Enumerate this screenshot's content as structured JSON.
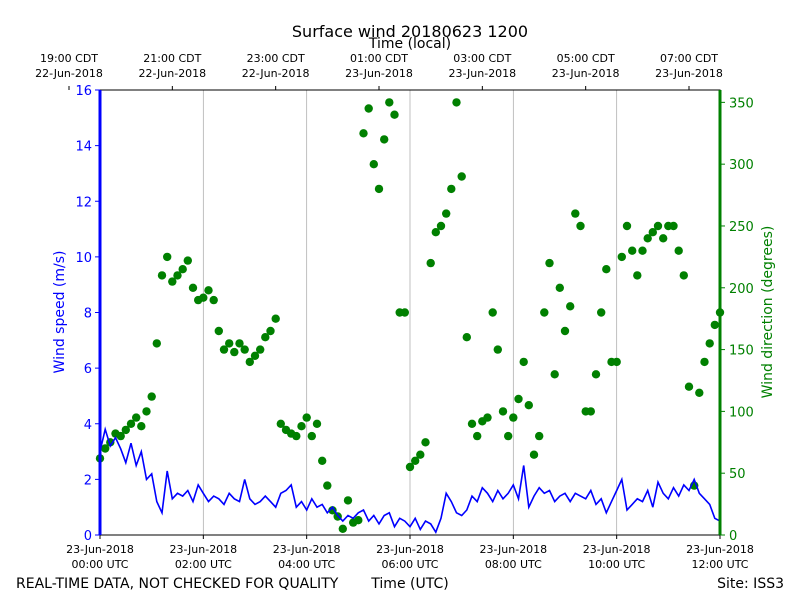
{
  "chart_data": {
    "type": "line+scatter",
    "title": "Surface wind 20180623 1200",
    "top_axis_label": "Time (local)",
    "bottom_axis_label": "Time (UTC)",
    "ylabel_left": "Wind speed (m/s)",
    "ylabel_right": "Wind direction (degrees)",
    "footer_left": "REAL-TIME DATA, NOT CHECKED FOR QUALITY",
    "footer_right": "Site: ISS3",
    "xlim_hours_utc": [
      0,
      12
    ],
    "ylim_left": [
      0,
      16
    ],
    "ylim_right": [
      0,
      360
    ],
    "left_ticks": [
      "0",
      "2",
      "4",
      "6",
      "8",
      "10",
      "12",
      "14",
      "16"
    ],
    "right_ticks": [
      "0",
      "50",
      "100",
      "150",
      "200",
      "250",
      "300",
      "350"
    ],
    "bottom_ticks": [
      {
        "hour": 0,
        "line1": "23-Jun-2018",
        "line2": "00:00 UTC"
      },
      {
        "hour": 2,
        "line1": "23-Jun-2018",
        "line2": "02:00 UTC"
      },
      {
        "hour": 4,
        "line1": "23-Jun-2018",
        "line2": "04:00 UTC"
      },
      {
        "hour": 6,
        "line1": "23-Jun-2018",
        "line2": "06:00 UTC"
      },
      {
        "hour": 8,
        "line1": "23-Jun-2018",
        "line2": "08:00 UTC"
      },
      {
        "hour": 10,
        "line1": "23-Jun-2018",
        "line2": "10:00 UTC"
      },
      {
        "hour": 12,
        "line1": "23-Jun-2018",
        "line2": "12:00 UTC"
      }
    ],
    "top_ticks": [
      {
        "hour": -0.6,
        "line1": "19:00 CDT",
        "line2": "22-Jun-2018"
      },
      {
        "hour": 1.4,
        "line1": "21:00 CDT",
        "line2": "22-Jun-2018"
      },
      {
        "hour": 3.4,
        "line1": "23:00 CDT",
        "line2": "22-Jun-2018"
      },
      {
        "hour": 5.4,
        "line1": "01:00 CDT",
        "line2": "23-Jun-2018"
      },
      {
        "hour": 7.4,
        "line1": "03:00 CDT",
        "line2": "23-Jun-2018"
      },
      {
        "hour": 9.4,
        "line1": "05:00 CDT",
        "line2": "23-Jun-2018"
      },
      {
        "hour": 11.4,
        "line1": "07:00 CDT",
        "line2": "23-Jun-2018"
      }
    ],
    "colors": {
      "speed": "#0000ff",
      "direction": "#008000",
      "grid": "#b0b0b0",
      "axis": "#000000"
    },
    "series": [
      {
        "name": "Wind speed (m/s)",
        "axis": "left",
        "style": "line",
        "x": [
          0.0,
          0.1,
          0.2,
          0.3,
          0.4,
          0.5,
          0.6,
          0.7,
          0.8,
          0.9,
          1.0,
          1.1,
          1.2,
          1.3,
          1.4,
          1.5,
          1.6,
          1.7,
          1.8,
          1.9,
          2.0,
          2.1,
          2.2,
          2.3,
          2.4,
          2.5,
          2.6,
          2.7,
          2.8,
          2.9,
          3.0,
          3.1,
          3.2,
          3.3,
          3.4,
          3.5,
          3.6,
          3.7,
          3.8,
          3.9,
          4.0,
          4.1,
          4.2,
          4.3,
          4.4,
          4.5,
          4.6,
          4.7,
          4.8,
          4.9,
          5.0,
          5.1,
          5.2,
          5.3,
          5.4,
          5.5,
          5.6,
          5.7,
          5.8,
          5.9,
          6.0,
          6.1,
          6.2,
          6.3,
          6.4,
          6.5,
          6.6,
          6.7,
          6.8,
          6.9,
          7.0,
          7.1,
          7.2,
          7.3,
          7.4,
          7.5,
          7.6,
          7.7,
          7.8,
          7.9,
          8.0,
          8.1,
          8.2,
          8.3,
          8.4,
          8.5,
          8.6,
          8.7,
          8.8,
          8.9,
          9.0,
          9.1,
          9.2,
          9.3,
          9.4,
          9.5,
          9.6,
          9.7,
          9.8,
          9.9,
          10.0,
          10.1,
          10.2,
          10.3,
          10.4,
          10.5,
          10.6,
          10.7,
          10.8,
          10.9,
          11.0,
          11.1,
          11.2,
          11.3,
          11.4,
          11.5,
          11.6,
          11.7,
          11.8,
          11.9,
          12.0
        ],
        "y": [
          3.0,
          3.8,
          3.2,
          3.5,
          3.1,
          2.6,
          3.3,
          2.5,
          3.0,
          2.0,
          2.2,
          1.2,
          0.8,
          2.3,
          1.3,
          1.5,
          1.4,
          1.6,
          1.2,
          1.8,
          1.5,
          1.2,
          1.4,
          1.3,
          1.1,
          1.5,
          1.3,
          1.2,
          2.0,
          1.3,
          1.1,
          1.2,
          1.4,
          1.2,
          1.0,
          1.5,
          1.6,
          1.8,
          1.0,
          1.2,
          0.9,
          1.3,
          1.0,
          1.1,
          0.8,
          1.0,
          0.7,
          0.5,
          0.7,
          0.6,
          0.8,
          0.9,
          0.5,
          0.7,
          0.4,
          0.7,
          0.8,
          0.3,
          0.6,
          0.5,
          0.3,
          0.6,
          0.2,
          0.5,
          0.4,
          0.1,
          0.6,
          1.5,
          1.2,
          0.8,
          0.7,
          0.9,
          1.4,
          1.2,
          1.7,
          1.5,
          1.2,
          1.6,
          1.3,
          1.5,
          1.8,
          1.3,
          2.5,
          1.0,
          1.4,
          1.7,
          1.5,
          1.6,
          1.2,
          1.4,
          1.5,
          1.2,
          1.5,
          1.4,
          1.3,
          1.6,
          1.1,
          1.3,
          0.8,
          1.2,
          1.6,
          2.0,
          0.9,
          1.1,
          1.3,
          1.2,
          1.6,
          1.0,
          1.9,
          1.5,
          1.3,
          1.7,
          1.4,
          1.8,
          1.6,
          2.0,
          1.5,
          1.3,
          1.1,
          0.6,
          0.5
        ]
      },
      {
        "name": "Wind direction (degrees)",
        "axis": "right",
        "style": "markers",
        "x": [
          0.0,
          0.1,
          0.2,
          0.3,
          0.4,
          0.5,
          0.6,
          0.7,
          0.8,
          0.9,
          1.0,
          1.1,
          1.2,
          1.3,
          1.4,
          1.5,
          1.6,
          1.7,
          1.8,
          1.9,
          2.0,
          2.1,
          2.2,
          2.3,
          2.4,
          2.5,
          2.6,
          2.7,
          2.8,
          2.9,
          3.0,
          3.1,
          3.2,
          3.3,
          3.4,
          3.5,
          3.6,
          3.7,
          3.8,
          3.9,
          4.0,
          4.1,
          4.2,
          4.3,
          4.4,
          4.5,
          4.6,
          4.7,
          4.8,
          4.9,
          5.0,
          5.1,
          5.2,
          5.3,
          5.4,
          5.5,
          5.6,
          5.7,
          5.8,
          5.9,
          6.0,
          6.1,
          6.2,
          6.3,
          6.4,
          6.5,
          6.6,
          6.7,
          6.8,
          6.9,
          7.0,
          7.1,
          7.2,
          7.3,
          7.4,
          7.5,
          7.6,
          7.7,
          7.8,
          7.9,
          8.0,
          8.1,
          8.2,
          8.3,
          8.4,
          8.5,
          8.6,
          8.7,
          8.8,
          8.9,
          9.0,
          9.1,
          9.2,
          9.3,
          9.4,
          9.5,
          9.6,
          9.7,
          9.8,
          9.9,
          10.0,
          10.1,
          10.2,
          10.3,
          10.4,
          10.5,
          10.6,
          10.7,
          10.8,
          10.9,
          11.0,
          11.1,
          11.2,
          11.3,
          11.4,
          11.5,
          11.6,
          11.7,
          11.8,
          11.9,
          12.0
        ],
        "y": [
          62,
          70,
          75,
          82,
          80,
          85,
          90,
          95,
          88,
          100,
          112,
          155,
          210,
          225,
          205,
          210,
          215,
          222,
          200,
          190,
          192,
          198,
          190,
          165,
          150,
          155,
          148,
          155,
          150,
          140,
          145,
          150,
          160,
          165,
          175,
          90,
          85,
          82,
          80,
          88,
          95,
          80,
          90,
          60,
          40,
          20,
          15,
          5,
          28,
          10,
          12,
          325,
          345,
          300,
          280,
          320,
          350,
          340,
          180,
          180,
          55,
          60,
          65,
          75,
          220,
          245,
          250,
          260,
          280,
          350,
          290,
          160,
          90,
          80,
          92,
          95,
          180,
          150,
          100,
          80,
          95,
          110,
          140,
          105,
          65,
          80,
          180,
          220,
          130,
          200,
          165,
          185,
          260,
          250,
          100,
          100,
          130,
          180,
          215,
          140,
          140,
          225,
          250,
          230,
          210,
          230,
          240,
          245,
          250,
          240,
          250,
          250,
          230,
          210,
          120,
          40,
          115,
          140,
          155,
          170,
          180
        ]
      }
    ]
  }
}
